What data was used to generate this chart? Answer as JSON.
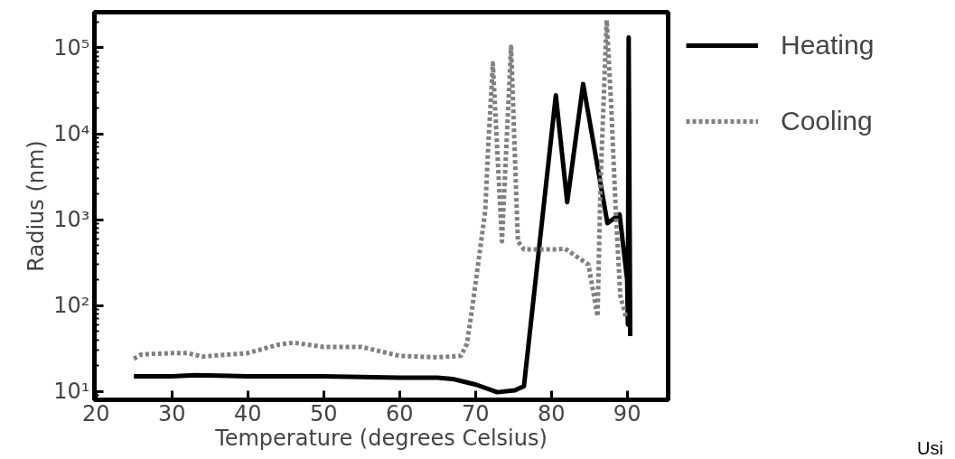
{
  "chart_data": {
    "type": "line",
    "xlabel": "Temperature (degrees Celsius)",
    "ylabel": "Radius (nm)",
    "log": "y",
    "xlim": [
      19.8,
      95.4
    ],
    "ylim": [
      8,
      260000
    ],
    "xticks": [
      20,
      30,
      40,
      50,
      60,
      70,
      80,
      90
    ],
    "yticks": [
      {
        "value": 10,
        "label": "10¹"
      },
      {
        "value": 100,
        "label": "10²"
      },
      {
        "value": 1000,
        "label": "10³"
      },
      {
        "value": 10000,
        "label": "10⁴"
      },
      {
        "value": 100000,
        "label": "10⁵"
      }
    ],
    "grid": false,
    "legend": "right",
    "annotations": [
      "Usi"
    ],
    "series": [
      {
        "name": "Heating",
        "color": "#000000",
        "line_style": "solid",
        "x": [
          25,
          30,
          33,
          40,
          50,
          60,
          65,
          67,
          70.1,
          72.9,
          75.2,
          76.4,
          80.6,
          82.1,
          84.2,
          87.4,
          89.0,
          90.0,
          90.1,
          90.2,
          90.4
        ],
        "values": [
          15,
          15,
          15.5,
          15,
          15,
          14.5,
          14.5,
          14,
          12,
          9.8,
          10.3,
          11.5,
          28000,
          1600,
          38000,
          910,
          1150,
          200,
          60,
          132000,
          44
        ]
      },
      {
        "name": "Cooling",
        "color": "#808080",
        "line_style": "dashed",
        "x": [
          25,
          26,
          30,
          32,
          34,
          40,
          44,
          46,
          50,
          55,
          60,
          65,
          68.1,
          68.9,
          69.7,
          71.3,
          71.7,
          72.3,
          73.5,
          74.7,
          75.6,
          76.4,
          80.4,
          81.8,
          84.9,
          86.1,
          86.5,
          87.3,
          87.9,
          88.5,
          89.1,
          89.9
        ],
        "values": [
          24,
          27,
          28,
          28,
          25.5,
          28,
          35,
          37,
          33,
          33,
          26,
          25,
          26,
          36,
          112,
          1260,
          7400,
          66000,
          560,
          103000,
          560,
          450,
          450,
          460,
          300,
          75,
          2800,
          210000,
          21000,
          1270,
          130,
          70
        ]
      }
    ]
  }
}
